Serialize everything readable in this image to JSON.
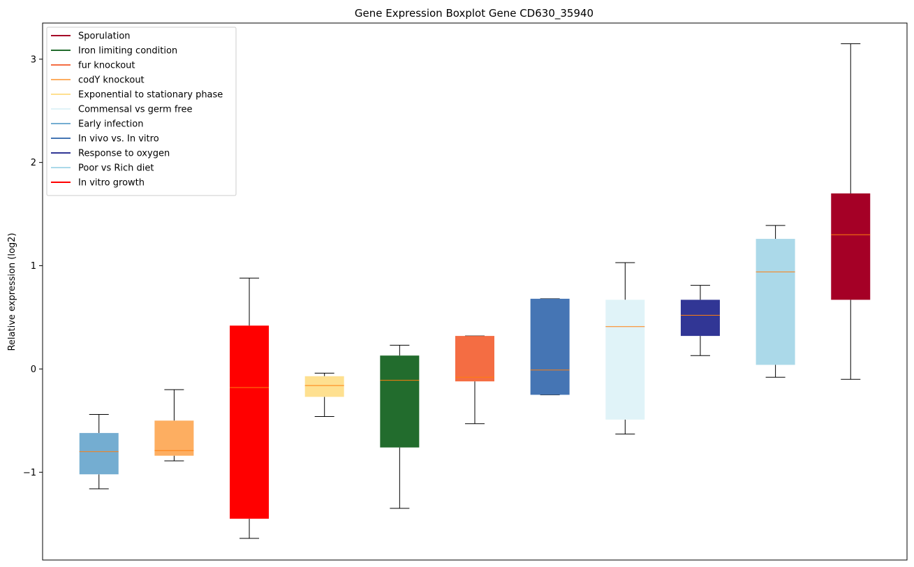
{
  "chart_data": {
    "type": "boxplot",
    "title": "Gene Expression Boxplot Gene CD630_35940",
    "ylabel": "Relative expression (log2)",
    "xlabel": "",
    "ylim": [
      -1.85,
      3.35
    ],
    "yticks": [
      -1,
      0,
      1,
      2,
      3
    ],
    "grid": false,
    "legend_placement": "upper-left",
    "median_color": "#ff7f0e",
    "whisker_color": "#000000",
    "legend": [
      {
        "label": "Sporulation",
        "color": "#a50026"
      },
      {
        "label": "Iron limiting condition",
        "color": "#226c2d"
      },
      {
        "label": "fur knockout",
        "color": "#f46d43"
      },
      {
        "label": "codY knockout",
        "color": "#fdae61"
      },
      {
        "label": "Exponential to stationary phase",
        "color": "#fee090"
      },
      {
        "label": "Commensal vs germ free",
        "color": "#e0f3f8"
      },
      {
        "label": "Early infection",
        "color": "#74add1"
      },
      {
        "label": "In vivo vs. In vitro",
        "color": "#4575b4"
      },
      {
        "label": "Response to oxygen",
        "color": "#313695"
      },
      {
        "label": "Poor vs Rich diet",
        "color": "#abd9e9"
      },
      {
        "label": "In vitro growth",
        "color": "#ff0000"
      }
    ],
    "boxes": [
      {
        "color": "#74add1",
        "whisker_low": -1.16,
        "q1": -1.02,
        "median": -0.8,
        "q3": -0.62,
        "whisker_high": -0.44
      },
      {
        "color": "#fdae61",
        "whisker_low": -0.89,
        "q1": -0.84,
        "median": -0.79,
        "q3": -0.5,
        "whisker_high": -0.2
      },
      {
        "color": "#ff0000",
        "whisker_low": -1.64,
        "q1": -1.45,
        "median": -0.18,
        "q3": 0.42,
        "whisker_high": 0.88
      },
      {
        "color": "#fee090",
        "whisker_low": -0.46,
        "q1": -0.27,
        "median": -0.16,
        "q3": -0.07,
        "whisker_high": -0.04
      },
      {
        "color": "#226c2d",
        "whisker_low": -1.35,
        "q1": -0.76,
        "median": -0.11,
        "q3": 0.13,
        "whisker_high": 0.23
      },
      {
        "color": "#f46d43",
        "whisker_low": -0.53,
        "q1": -0.12,
        "median": -0.08,
        "q3": 0.32,
        "whisker_high": 0.32
      },
      {
        "color": "#4575b4",
        "whisker_low": -0.25,
        "q1": -0.25,
        "median": -0.01,
        "q3": 0.68,
        "whisker_high": 0.68
      },
      {
        "color": "#e0f3f8",
        "whisker_low": -0.63,
        "q1": -0.49,
        "median": 0.41,
        "q3": 0.67,
        "whisker_high": 1.03
      },
      {
        "color": "#313695",
        "whisker_low": 0.13,
        "q1": 0.32,
        "median": 0.52,
        "q3": 0.67,
        "whisker_high": 0.81
      },
      {
        "color": "#abd9e9",
        "whisker_low": -0.08,
        "q1": 0.04,
        "median": 0.94,
        "q3": 1.26,
        "whisker_high": 1.39
      },
      {
        "color": "#a50026",
        "whisker_low": -0.1,
        "q1": 0.67,
        "median": 1.3,
        "q3": 1.7,
        "whisker_high": 3.15
      }
    ]
  }
}
